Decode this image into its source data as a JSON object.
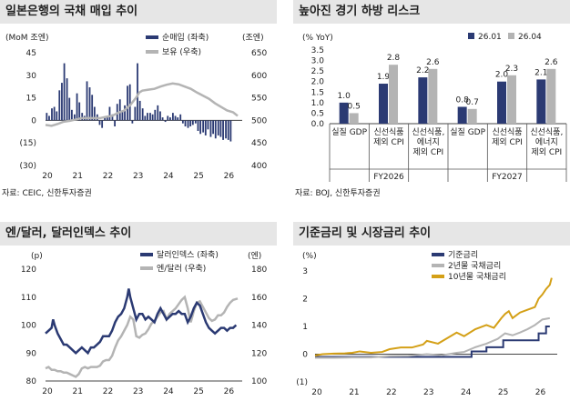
{
  "panels": {
    "tl": {
      "title": "일본은행의 국채 매입 추이",
      "source": "자료: CEIC, 신한투자증권"
    },
    "tr": {
      "title": "높아진 경기 하방 리스크",
      "source": "자료: BOJ, 신한투자증권"
    },
    "bl": {
      "title": "엔/달러, 달러인덱스 추이"
    },
    "br": {
      "title": "기준금리 및 시장금리 추이"
    }
  },
  "chart_data": [
    {
      "type": "bar",
      "id": "tl",
      "left_unit": "(MoM 조엔)",
      "right_unit": "(조엔)",
      "y_ticks": [
        "45",
        "30",
        "15",
        "0",
        "(15)",
        "(30)"
      ],
      "y2_ticks": [
        "650",
        "600",
        "550",
        "500",
        "450",
        "400"
      ],
      "ylim": [
        -30,
        45
      ],
      "y2lim": [
        400,
        650
      ],
      "x_ticks": [
        "20",
        "21",
        "22",
        "23",
        "24",
        "25",
        "26"
      ],
      "xlim": [
        2020.0,
        2026.5
      ],
      "series": [
        {
          "name": "순매입 (좌축)",
          "axis": "left",
          "color": "#2b3a73",
          "x": [
            2020.04,
            2020.12,
            2020.21,
            2020.29,
            2020.37,
            2020.46,
            2020.54,
            2020.62,
            2020.71,
            2020.79,
            2020.87,
            2020.96,
            2021.04,
            2021.12,
            2021.21,
            2021.29,
            2021.37,
            2021.46,
            2021.54,
            2021.62,
            2021.71,
            2021.79,
            2021.87,
            2021.96,
            2022.04,
            2022.12,
            2022.21,
            2022.29,
            2022.37,
            2022.46,
            2022.54,
            2022.62,
            2022.71,
            2022.79,
            2022.87,
            2022.96,
            2023.04,
            2023.12,
            2023.21,
            2023.29,
            2023.37,
            2023.46,
            2023.54,
            2023.62,
            2023.71,
            2023.79,
            2023.87,
            2023.96,
            2024.04,
            2024.12,
            2024.21,
            2024.29,
            2024.37,
            2024.46,
            2024.54,
            2024.62,
            2024.71,
            2024.79,
            2024.87,
            2024.96,
            2025.04,
            2025.12,
            2025.21,
            2025.29,
            2025.37,
            2025.46,
            2025.54,
            2025.62,
            2025.71,
            2025.79,
            2025.87,
            2025.96,
            2026.04,
            2026.12
          ],
          "values": [
            5,
            3,
            8,
            9,
            6,
            20,
            25,
            38,
            28,
            15,
            7,
            4,
            18,
            12,
            5,
            3,
            26,
            22,
            17,
            9,
            4,
            -3,
            -5,
            2,
            3,
            9,
            4,
            -4,
            11,
            14,
            6,
            10,
            23,
            24,
            -2,
            9,
            38,
            13,
            8,
            3,
            5,
            5,
            4,
            7,
            10,
            6,
            2,
            -1,
            3,
            2,
            5,
            3,
            2,
            4,
            -2,
            -4,
            -5,
            -4,
            -3,
            -2,
            -7,
            -9,
            -8,
            -10,
            -6,
            -11,
            -9,
            -12,
            -10,
            -11,
            -13,
            -12,
            -13,
            -14
          ]
        },
        {
          "name": "보유 (우축)",
          "axis": "right",
          "color": "#b4b4b4",
          "x": [
            2020.0,
            2020.2,
            2020.4,
            2020.6,
            2020.8,
            2021.0,
            2021.2,
            2021.4,
            2021.6,
            2021.8,
            2022.0,
            2022.2,
            2022.4,
            2022.6,
            2022.8,
            2023.0,
            2023.1,
            2023.2,
            2023.4,
            2023.6,
            2023.8,
            2024.0,
            2024.2,
            2024.4,
            2024.6,
            2024.8,
            2025.0,
            2025.2,
            2025.4,
            2025.6,
            2025.8,
            2026.0,
            2026.2,
            2026.35
          ],
          "values": [
            490,
            488,
            492,
            497,
            499,
            502,
            505,
            505,
            505,
            505,
            508,
            510,
            517,
            522,
            534,
            551,
            562,
            566,
            568,
            570,
            575,
            579,
            582,
            580,
            575,
            570,
            562,
            555,
            548,
            538,
            530,
            522,
            518,
            510
          ]
        }
      ]
    },
    {
      "type": "bar",
      "id": "tr",
      "left_unit": "(% YoY)",
      "y_ticks": [
        "3.5",
        "3.0",
        "2.5",
        "2.0",
        "1.5",
        "1.0",
        "0.5",
        "0.0"
      ],
      "ylim": [
        0,
        3.5
      ],
      "categories": [
        "실질 GDP",
        "신선식품 제외 CPI",
        "신선식품, 에너지 제외 CPI",
        "실질 GDP",
        "신선식품 제외 CPI",
        "신선식품, 에너지 제외 CPI"
      ],
      "category_lines": [
        [
          "실질 GDP"
        ],
        [
          "신선식품",
          "제외 CPI"
        ],
        [
          "신선식품,",
          "에너지",
          "제외 CPI"
        ],
        [
          "실질 GDP"
        ],
        [
          "신선식품",
          "제외 CPI"
        ],
        [
          "신선식품,",
          "에너지",
          "제외 CPI"
        ]
      ],
      "groups": [
        "FY2026",
        "FY2027"
      ],
      "series": [
        {
          "name": "26.01",
          "color": "#2b3a73",
          "values": [
            1.0,
            1.9,
            2.2,
            0.8,
            2.0,
            2.1
          ],
          "labels": [
            "1.0",
            "1.9",
            "2.2",
            "0.8",
            "2.0",
            "2.1"
          ]
        },
        {
          "name": "26.04",
          "color": "#b4b4b4",
          "values": [
            0.5,
            2.8,
            2.6,
            0.7,
            2.3,
            2.6
          ],
          "labels": [
            "0.5",
            "2.8",
            "2.6",
            "0.7",
            "2.3",
            "2.6"
          ]
        }
      ]
    },
    {
      "type": "line",
      "id": "bl",
      "left_unit": "(p)",
      "right_unit": "(엔)",
      "y_ticks": [
        "120",
        "110",
        "100",
        "90",
        "80"
      ],
      "y2_ticks": [
        "180",
        "160",
        "140",
        "120",
        "100"
      ],
      "ylim": [
        80,
        120
      ],
      "y2lim": [
        100,
        180
      ],
      "x_ticks": [
        "20",
        "21",
        "22",
        "23",
        "24",
        "25",
        "26"
      ],
      "xlim": [
        2020.0,
        2026.5
      ],
      "series": [
        {
          "name": "달러인덱스 (좌축)",
          "axis": "left",
          "color": "#2b3a73",
          "x": [
            2020.0,
            2020.1,
            2020.2,
            2020.25,
            2020.3,
            2020.4,
            2020.5,
            2020.6,
            2020.7,
            2020.8,
            2020.9,
            2021.0,
            2021.1,
            2021.2,
            2021.3,
            2021.4,
            2021.5,
            2021.6,
            2021.7,
            2021.8,
            2021.9,
            2022.0,
            2022.1,
            2022.2,
            2022.3,
            2022.4,
            2022.5,
            2022.6,
            2022.7,
            2022.75,
            2022.8,
            2022.9,
            2023.0,
            2023.1,
            2023.2,
            2023.3,
            2023.4,
            2023.5,
            2023.6,
            2023.7,
            2023.8,
            2023.9,
            2024.0,
            2024.1,
            2024.2,
            2024.3,
            2024.4,
            2024.5,
            2024.6,
            2024.7,
            2024.8,
            2024.9,
            2025.0,
            2025.1,
            2025.2,
            2025.3,
            2025.4,
            2025.5,
            2025.6,
            2025.7,
            2025.8,
            2025.9,
            2026.0,
            2026.1,
            2026.2,
            2026.3
          ],
          "values": [
            97,
            98,
            99,
            102,
            100,
            97,
            95,
            93,
            93,
            92,
            91,
            90,
            91,
            92,
            91,
            90,
            92,
            92,
            93,
            94,
            96,
            96,
            96,
            98,
            101,
            103,
            104,
            106,
            110,
            113,
            110,
            106,
            102,
            104,
            104,
            102,
            103,
            102,
            101,
            104,
            106,
            104,
            102,
            103,
            104,
            104,
            105,
            104,
            104,
            101,
            103,
            106,
            108,
            107,
            104,
            101,
            99,
            98,
            97,
            98,
            99,
            99,
            98,
            99,
            99,
            100
          ]
        },
        {
          "name": "엔/달러 (우축)",
          "axis": "right",
          "color": "#b4b4b4",
          "x": [
            2020.0,
            2020.1,
            2020.2,
            2020.3,
            2020.4,
            2020.5,
            2020.6,
            2020.7,
            2020.8,
            2020.9,
            2021.0,
            2021.1,
            2021.2,
            2021.3,
            2021.4,
            2021.5,
            2021.6,
            2021.7,
            2021.8,
            2021.9,
            2022.0,
            2022.1,
            2022.2,
            2022.3,
            2022.4,
            2022.5,
            2022.6,
            2022.7,
            2022.8,
            2022.9,
            2023.0,
            2023.1,
            2023.2,
            2023.3,
            2023.4,
            2023.5,
            2023.6,
            2023.7,
            2023.8,
            2023.9,
            2024.0,
            2024.1,
            2024.2,
            2024.3,
            2024.4,
            2024.5,
            2024.6,
            2024.7,
            2024.8,
            2024.9,
            2025.0,
            2025.1,
            2025.2,
            2025.3,
            2025.4,
            2025.5,
            2025.6,
            2025.7,
            2025.8,
            2025.9,
            2026.0,
            2026.1,
            2026.2,
            2026.35
          ],
          "values": [
            109,
            110,
            108,
            108,
            107,
            107,
            106,
            106,
            105,
            104,
            103,
            105,
            109,
            110,
            109,
            110,
            110,
            110,
            111,
            114,
            115,
            115,
            118,
            124,
            129,
            132,
            136,
            140,
            146,
            144,
            132,
            131,
            133,
            134,
            137,
            141,
            143,
            146,
            149,
            150,
            144,
            148,
            150,
            152,
            155,
            158,
            160,
            152,
            142,
            150,
            156,
            157,
            153,
            149,
            145,
            143,
            144,
            147,
            147,
            149,
            153,
            156,
            158,
            159
          ]
        }
      ]
    },
    {
      "type": "line",
      "id": "br",
      "left_unit": "(%)",
      "y_ticks": [
        "3",
        "2",
        "1",
        "0",
        "(1)"
      ],
      "ylim": [
        -1,
        3
      ],
      "x_ticks": [
        "20",
        "21",
        "22",
        "23",
        "24",
        "25",
        "26"
      ],
      "xlim": [
        2020.0,
        2026.5
      ],
      "series": [
        {
          "name": "기준금리",
          "color": "#2b3a73",
          "step": true,
          "x": [
            2020.0,
            2024.2,
            2024.6,
            2025.05,
            2026.0,
            2026.2,
            2026.3
          ],
          "values": [
            -0.1,
            0.1,
            0.25,
            0.5,
            0.75,
            1.0,
            1.0
          ]
        },
        {
          "name": "2년물 국채금리",
          "color": "#b4b4b4",
          "x": [
            2020.0,
            2020.5,
            2021.0,
            2021.5,
            2022.0,
            2022.5,
            2023.0,
            2023.4,
            2023.8,
            2024.0,
            2024.3,
            2024.6,
            2024.9,
            2025.1,
            2025.3,
            2025.5,
            2025.7,
            2025.9,
            2026.1,
            2026.3
          ],
          "values": [
            -0.13,
            -0.13,
            -0.12,
            -0.12,
            -0.07,
            -0.06,
            0.0,
            -0.04,
            0.05,
            0.08,
            0.25,
            0.38,
            0.55,
            0.75,
            0.68,
            0.78,
            0.9,
            1.05,
            1.25,
            1.3
          ]
        },
        {
          "name": "10년물 국채금리",
          "color": "#d4a017",
          "x": [
            2020.0,
            2020.2,
            2020.5,
            2020.8,
            2021.0,
            2021.2,
            2021.5,
            2021.8,
            2022.0,
            2022.3,
            2022.6,
            2022.9,
            2023.0,
            2023.3,
            2023.6,
            2023.8,
            2024.0,
            2024.3,
            2024.6,
            2024.8,
            2025.0,
            2025.1,
            2025.2,
            2025.3,
            2025.5,
            2025.7,
            2025.9,
            2026.0,
            2026.1,
            2026.2,
            2026.3,
            2026.35
          ],
          "values": [
            -0.05,
            0.0,
            0.02,
            0.03,
            0.05,
            0.1,
            0.05,
            0.08,
            0.18,
            0.24,
            0.24,
            0.35,
            0.48,
            0.38,
            0.62,
            0.78,
            0.65,
            0.9,
            1.05,
            0.95,
            1.3,
            1.45,
            1.55,
            1.3,
            1.5,
            1.6,
            1.7,
            2.0,
            2.15,
            2.35,
            2.5,
            2.75
          ]
        }
      ]
    }
  ]
}
